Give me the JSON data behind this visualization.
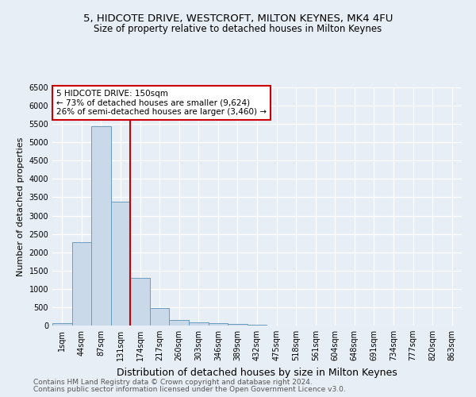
{
  "title1": "5, HIDCOTE DRIVE, WESTCROFT, MILTON KEYNES, MK4 4FU",
  "title2": "Size of property relative to detached houses in Milton Keynes",
  "xlabel": "Distribution of detached houses by size in Milton Keynes",
  "ylabel": "Number of detached properties",
  "bar_color": "#c9d9ea",
  "bar_edge_color": "#6a9cbf",
  "categories": [
    "1sqm",
    "44sqm",
    "87sqm",
    "131sqm",
    "174sqm",
    "217sqm",
    "260sqm",
    "303sqm",
    "346sqm",
    "389sqm",
    "432sqm",
    "475sqm",
    "518sqm",
    "561sqm",
    "604sqm",
    "648sqm",
    "691sqm",
    "734sqm",
    "777sqm",
    "820sqm",
    "863sqm"
  ],
  "values": [
    75,
    2280,
    5430,
    3380,
    1310,
    480,
    160,
    90,
    70,
    35,
    20,
    10,
    5,
    3,
    2,
    1,
    1,
    0,
    0,
    0,
    0
  ],
  "ylim": [
    0,
    6500
  ],
  "yticks": [
    0,
    500,
    1000,
    1500,
    2000,
    2500,
    3000,
    3500,
    4000,
    4500,
    5000,
    5500,
    6000,
    6500
  ],
  "vline_x_idx": 3,
  "vline_color": "#cc0000",
  "annotation_title": "5 HIDCOTE DRIVE: 150sqm",
  "annotation_line1": "← 73% of detached houses are smaller (9,624)",
  "annotation_line2": "26% of semi-detached houses are larger (3,460) →",
  "annotation_box_color": "#ffffff",
  "annotation_box_edge": "#cc0000",
  "footer1": "Contains HM Land Registry data © Crown copyright and database right 2024.",
  "footer2": "Contains public sector information licensed under the Open Government Licence v3.0.",
  "bg_color": "#e8eef5",
  "grid_color": "#ffffff",
  "title1_fontsize": 9.5,
  "title2_fontsize": 8.5,
  "xlabel_fontsize": 9,
  "ylabel_fontsize": 8,
  "tick_fontsize": 7,
  "footer_fontsize": 6.5,
  "annot_fontsize": 7.5
}
